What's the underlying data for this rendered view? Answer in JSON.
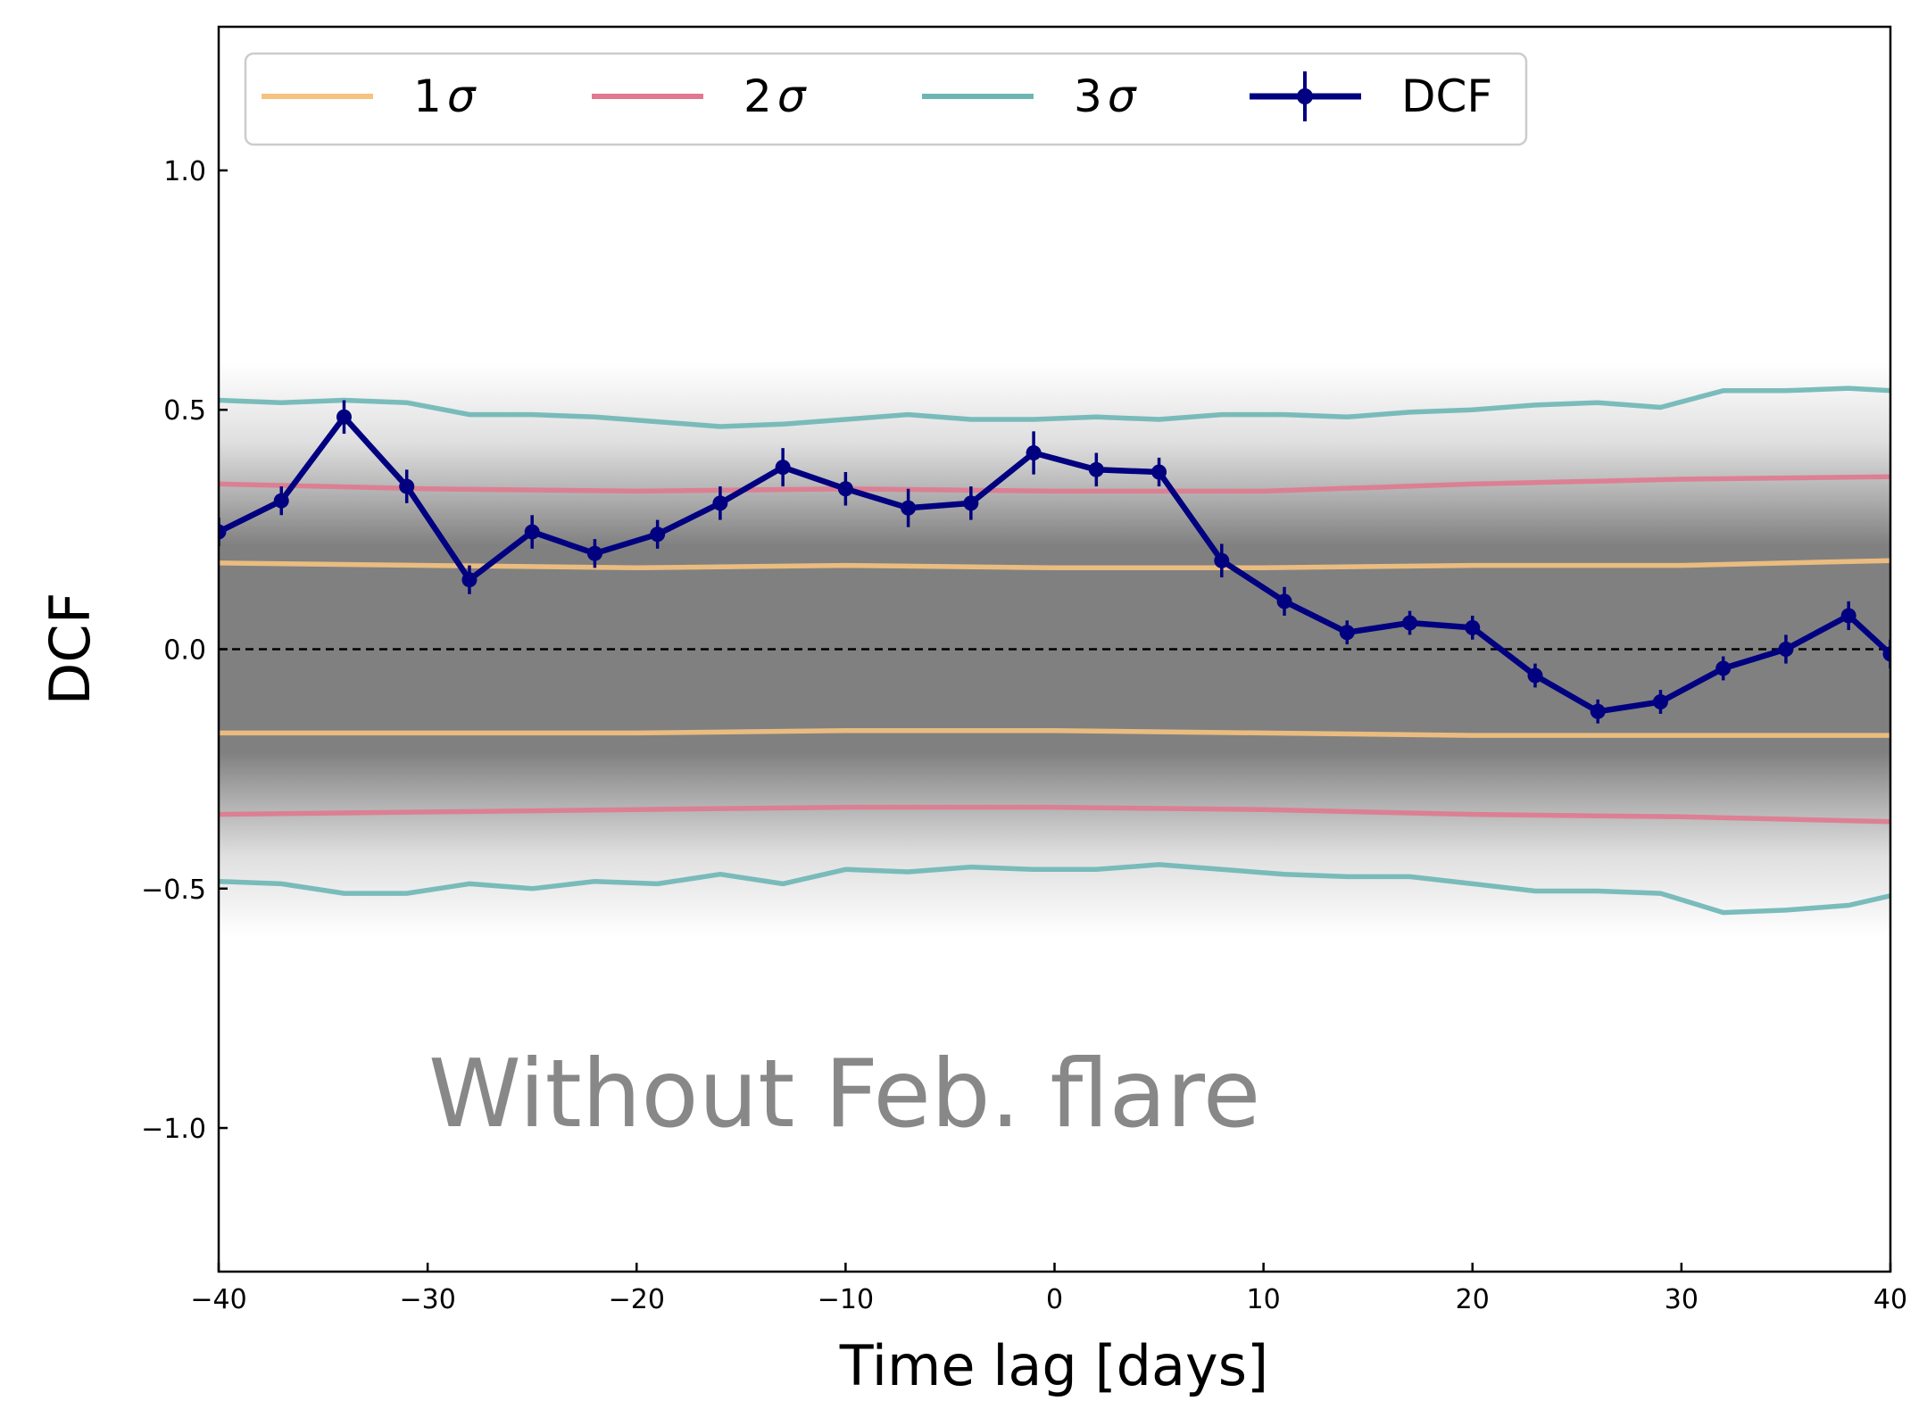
{
  "chart_data": {
    "type": "line",
    "title": "",
    "xlabel": "Time lag [days]",
    "ylabel": "DCF",
    "xlim": [
      -40,
      40
    ],
    "ylim": [
      -1.3,
      1.3
    ],
    "xticks": [
      {
        "value": -40,
        "label": "−40"
      },
      {
        "value": -30,
        "label": "−30"
      },
      {
        "value": -20,
        "label": "−20"
      },
      {
        "value": -10,
        "label": "−10"
      },
      {
        "value": 0,
        "label": "0"
      },
      {
        "value": 10,
        "label": "10"
      },
      {
        "value": 20,
        "label": "20"
      },
      {
        "value": 30,
        "label": "30"
      },
      {
        "value": 40,
        "label": "40"
      }
    ],
    "yticks": [
      {
        "value": -1.0,
        "label": "−1.0"
      },
      {
        "value": -0.5,
        "label": "−0.5"
      },
      {
        "value": 0.0,
        "label": "0.0"
      },
      {
        "value": 0.5,
        "label": "0.5"
      },
      {
        "value": 1.0,
        "label": "1.0"
      }
    ],
    "grid": false,
    "legend_position": "top",
    "annotation": "Without Feb. flare",
    "zero_line": {
      "y": 0,
      "style": "dashed",
      "color": "#000000"
    },
    "simulation_band": {
      "color": "#808080",
      "inner_halfwidth": 0.38,
      "outer_halfwidth": 0.6
    },
    "sigma_series": [
      {
        "name": "1σ",
        "label_num": "1",
        "label_sym": "σ",
        "color": "#F5C280",
        "x": [
          -40,
          -30,
          -20,
          -10,
          0,
          10,
          20,
          30,
          40
        ],
        "upper": [
          0.18,
          0.175,
          0.17,
          0.175,
          0.17,
          0.17,
          0.175,
          0.175,
          0.185
        ],
        "lower": [
          -0.175,
          -0.175,
          -0.175,
          -0.17,
          -0.17,
          -0.175,
          -0.18,
          -0.18,
          -0.18
        ]
      },
      {
        "name": "2σ",
        "label_num": "2",
        "label_sym": "σ",
        "color": "#E0798F",
        "x": [
          -40,
          -30,
          -20,
          -10,
          0,
          10,
          20,
          30,
          40
        ],
        "upper": [
          0.345,
          0.335,
          0.33,
          0.335,
          0.33,
          0.33,
          0.345,
          0.355,
          0.36
        ],
        "lower": [
          -0.345,
          -0.34,
          -0.335,
          -0.33,
          -0.33,
          -0.335,
          -0.345,
          -0.35,
          -0.36
        ]
      },
      {
        "name": "3σ",
        "label_num": "3",
        "label_sym": "σ",
        "color": "#6DB6B5",
        "x": [
          -40,
          -37,
          -34,
          -31,
          -28,
          -25,
          -22,
          -19,
          -16,
          -13,
          -10,
          -7,
          -4,
          -1,
          2,
          5,
          8,
          11,
          14,
          17,
          20,
          23,
          26,
          29,
          32,
          35,
          38,
          40
        ],
        "upper": [
          0.52,
          0.515,
          0.52,
          0.515,
          0.49,
          0.49,
          0.485,
          0.475,
          0.465,
          0.47,
          0.48,
          0.49,
          0.48,
          0.48,
          0.485,
          0.48,
          0.49,
          0.49,
          0.485,
          0.495,
          0.5,
          0.51,
          0.515,
          0.505,
          0.54,
          0.54,
          0.545,
          0.54
        ],
        "lower": [
          -0.485,
          -0.49,
          -0.51,
          -0.51,
          -0.49,
          -0.5,
          -0.485,
          -0.49,
          -0.47,
          -0.49,
          -0.46,
          -0.465,
          -0.455,
          -0.46,
          -0.46,
          -0.45,
          -0.46,
          -0.47,
          -0.475,
          -0.475,
          -0.49,
          -0.505,
          -0.505,
          -0.51,
          -0.55,
          -0.545,
          -0.535,
          -0.515
        ]
      }
    ],
    "dcf": {
      "name": "DCF",
      "color": "#000080",
      "x": [
        -40,
        -37,
        -34,
        -31,
        -28,
        -25,
        -22,
        -19,
        -16,
        -13,
        -10,
        -7,
        -4,
        -1,
        2,
        5,
        8,
        11,
        14,
        17,
        20,
        23,
        26,
        29,
        32,
        35,
        38,
        40
      ],
      "y": [
        0.245,
        0.31,
        0.485,
        0.34,
        0.145,
        0.245,
        0.2,
        0.24,
        0.305,
        0.38,
        0.335,
        0.295,
        0.305,
        0.41,
        0.375,
        0.37,
        0.185,
        0.1,
        0.035,
        0.055,
        0.045,
        -0.055,
        -0.13,
        -0.11,
        -0.04,
        0.0,
        0.07,
        -0.01
      ],
      "yerr": [
        0.03,
        0.03,
        0.035,
        0.035,
        0.03,
        0.035,
        0.03,
        0.03,
        0.035,
        0.04,
        0.035,
        0.04,
        0.035,
        0.045,
        0.035,
        0.03,
        0.035,
        0.03,
        0.025,
        0.025,
        0.025,
        0.025,
        0.025,
        0.025,
        0.025,
        0.03,
        0.03,
        0.03
      ]
    }
  }
}
